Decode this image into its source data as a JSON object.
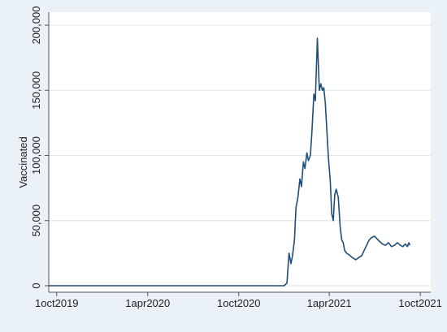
{
  "chart_data": {
    "type": "line",
    "title": "",
    "xlabel": "",
    "ylabel": "Vaccinated",
    "x_ticks": [
      "1oct2019",
      "1apr2020",
      "1oct2020",
      "1apr2021",
      "1oct2021"
    ],
    "y_ticks": [
      "0",
      "50,000",
      "100,000",
      "150,000",
      "200,000"
    ],
    "y_tick_values": [
      0,
      50000,
      100000,
      150000,
      200000
    ],
    "xlim": [
      "2019-09-15",
      "2021-10-22"
    ],
    "ylim": [
      -5000,
      210000
    ],
    "grid": true,
    "colors": {
      "line": "#1f4e79",
      "background": "#eaf1f7",
      "plot": "#ffffff",
      "grid": "#dfe6ec"
    },
    "series": [
      {
        "x": [
          "2019-09-15",
          "2020-12-31",
          "2021-01-06",
          "2021-01-10",
          "2021-01-14",
          "2021-01-17",
          "2021-01-21",
          "2021-01-24",
          "2021-01-28",
          "2021-02-01",
          "2021-02-04",
          "2021-02-08",
          "2021-02-11",
          "2021-02-15",
          "2021-02-18",
          "2021-02-22",
          "2021-02-25",
          "2021-03-01",
          "2021-03-04",
          "2021-03-08",
          "2021-03-12",
          "2021-03-15",
          "2021-03-18",
          "2021-03-21",
          "2021-03-24",
          "2021-03-27",
          "2021-03-30",
          "2021-04-03",
          "2021-04-06",
          "2021-04-09",
          "2021-04-12",
          "2021-04-15",
          "2021-04-19",
          "2021-04-23",
          "2021-04-26",
          "2021-04-29",
          "2021-05-02",
          "2021-05-06",
          "2021-05-10",
          "2021-05-13",
          "2021-05-16",
          "2021-05-20",
          "2021-05-24",
          "2021-05-28",
          "2021-06-01",
          "2021-06-05",
          "2021-06-10",
          "2021-06-15",
          "2021-06-20",
          "2021-06-25",
          "2021-07-01",
          "2021-07-06",
          "2021-07-11",
          "2021-07-17",
          "2021-07-23",
          "2021-07-29",
          "2021-08-04",
          "2021-08-10",
          "2021-08-16",
          "2021-08-22",
          "2021-08-27",
          "2021-09-01",
          "2021-09-05",
          "2021-09-08",
          "2021-09-10"
        ],
        "values": [
          0,
          0,
          2000,
          25000,
          17000,
          23000,
          35000,
          60000,
          68000,
          82000,
          76000,
          95000,
          90000,
          102000,
          96000,
          100000,
          117000,
          147000,
          142000,
          190000,
          150000,
          155000,
          150000,
          152000,
          140000,
          120000,
          100000,
          80000,
          55000,
          50000,
          70000,
          74000,
          68000,
          45000,
          35000,
          33000,
          27000,
          25000,
          24000,
          23000,
          22000,
          21000,
          20000,
          21000,
          22000,
          23000,
          27000,
          31000,
          35000,
          37000,
          38000,
          36000,
          34000,
          32000,
          31000,
          33000,
          30000,
          31000,
          33000,
          31000,
          30000,
          32000,
          30000,
          33000,
          31000
        ]
      }
    ]
  }
}
